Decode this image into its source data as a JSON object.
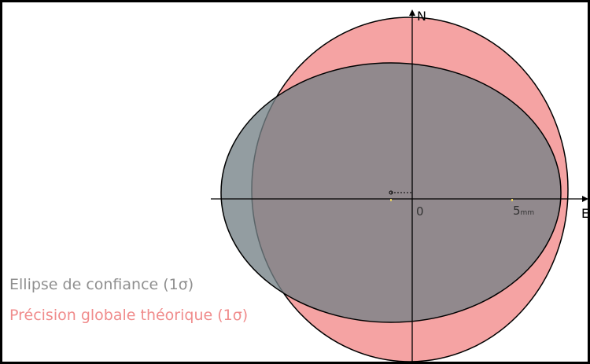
{
  "axes": {
    "north": "N",
    "east": "E",
    "origin": "0",
    "scale": {
      "value": "5",
      "unit": "mm"
    }
  },
  "legend": {
    "confidence_ellipse": "Ellipse de confiance (1σ)",
    "global_precision": "Précision globale théorique (1σ)"
  }
}
